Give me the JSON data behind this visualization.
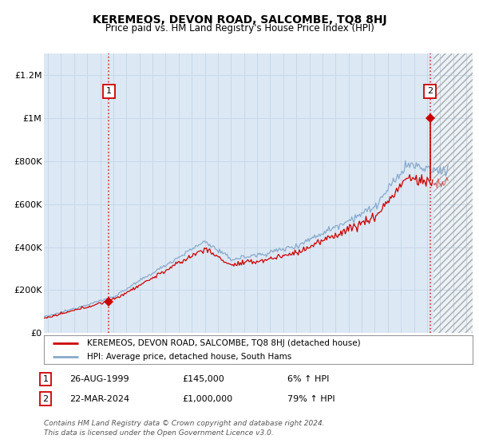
{
  "title": "KEREMEOS, DEVON ROAD, SALCOMBE, TQ8 8HJ",
  "subtitle": "Price paid vs. HM Land Registry's House Price Index (HPI)",
  "legend_line1": "KEREMEOS, DEVON ROAD, SALCOMBE, TQ8 8HJ (detached house)",
  "legend_line2": "HPI: Average price, detached house, South Hams",
  "footer_line1": "Contains HM Land Registry data © Crown copyright and database right 2024.",
  "footer_line2": "This data is licensed under the Open Government Licence v3.0.",
  "ylim": [
    0,
    1300000
  ],
  "yticks": [
    0,
    200000,
    400000,
    600000,
    800000,
    1000000,
    1200000
  ],
  "ytick_labels": [
    "£0",
    "£200K",
    "£400K",
    "£600K",
    "£800K",
    "£1M",
    "£1.2M"
  ],
  "xstart": 1994.7,
  "xend": 2027.5,
  "xticks": [
    1995,
    1996,
    1997,
    1998,
    1999,
    2000,
    2001,
    2002,
    2003,
    2004,
    2005,
    2006,
    2007,
    2008,
    2009,
    2010,
    2011,
    2012,
    2013,
    2014,
    2015,
    2016,
    2017,
    2018,
    2019,
    2020,
    2021,
    2022,
    2023,
    2024,
    2025,
    2026,
    2027
  ],
  "line_color_red": "#cc0000",
  "line_color_blue": "#88aacc",
  "grid_color": "#c8d8e8",
  "bg_color": "#dce8f4",
  "sale1_x": 1999.65,
  "sale2_x": 2024.22,
  "sale1_price": 145000,
  "sale2_price": 1000000,
  "future_start": 2024.5,
  "table_date1": "26-AUG-1999",
  "table_price1": "£145,000",
  "table_hpi1": "6% ↑ HPI",
  "table_date2": "22-MAR-2024",
  "table_price2": "£1,000,000",
  "table_hpi2": "79% ↑ HPI"
}
